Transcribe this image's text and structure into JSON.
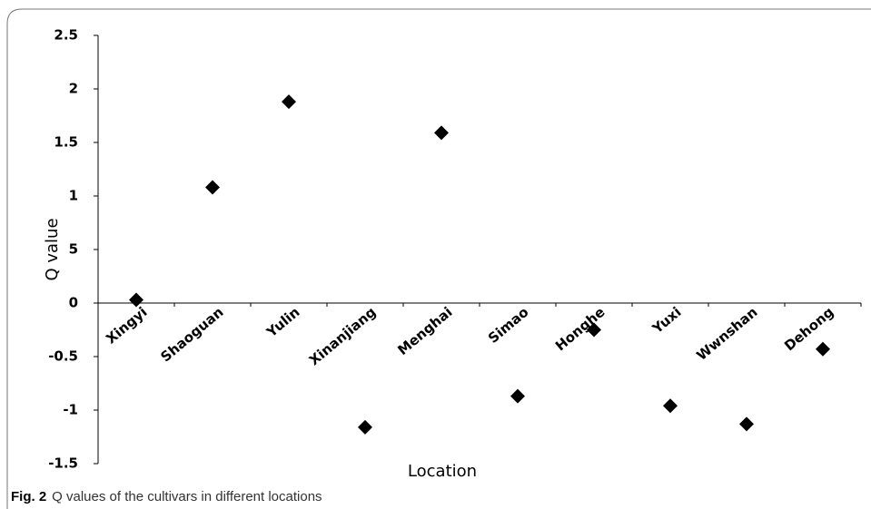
{
  "chart_data": {
    "type": "scatter",
    "title": "",
    "x_label": "Location",
    "y_label": "Q value",
    "figure_label": "Fig. 2",
    "caption": "Q values of the cultivars in different locations",
    "categories": [
      "Xingyi",
      "Shaoguan",
      "Yulin",
      "Xinanjiang",
      "Menghai",
      "Simao",
      "Honghe",
      "Yuxi",
      "Wwnshan",
      "Dehong"
    ],
    "values": [
      0.03,
      1.08,
      1.88,
      -1.16,
      1.59,
      -0.87,
      -0.25,
      -0.96,
      -1.13,
      -0.43
    ],
    "color": "#000000",
    "marker": "diamond",
    "ylim": [
      -1.5,
      2.5
    ],
    "yticks": [
      -1.5,
      -1,
      -0.5,
      0,
      {
        "value": 0.5,
        "label": "5"
      },
      1,
      1.5,
      2,
      2.5
    ],
    "grid": false
  }
}
